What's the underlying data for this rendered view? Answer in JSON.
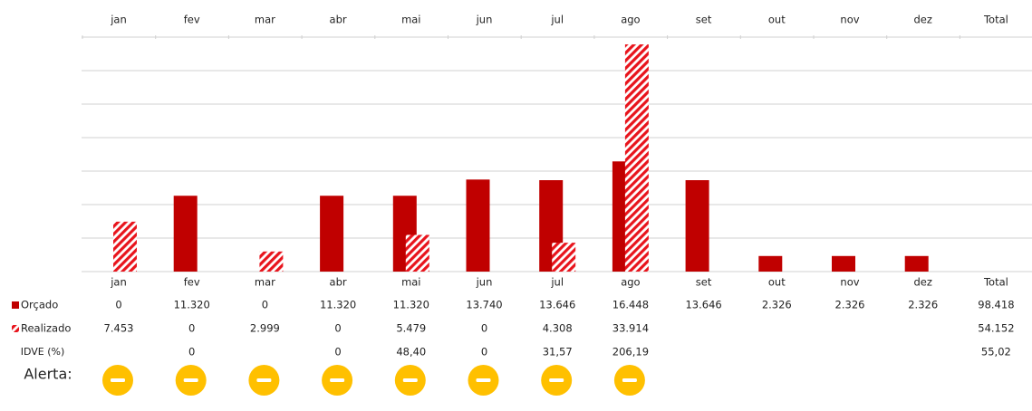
{
  "chart_data": {
    "type": "bar",
    "categories": [
      "jan",
      "fev",
      "mar",
      "abr",
      "mai",
      "jun",
      "jul",
      "ago",
      "set",
      "out",
      "nov",
      "dez"
    ],
    "total_label": "Total",
    "ylim": [
      0,
      35000
    ],
    "yticks": [
      0,
      5000,
      10000,
      15000,
      20000,
      25000,
      30000,
      35000
    ],
    "grid": true,
    "series": [
      {
        "name": "Orçado",
        "color": "#c00000",
        "pattern": "solid",
        "values": [
          0,
          11320,
          0,
          11320,
          11320,
          13740,
          13646,
          16448,
          13646,
          2326,
          2326,
          2326
        ],
        "value_labels": [
          "0",
          "11.320",
          "0",
          "11.320",
          "11.320",
          "13.740",
          "13.646",
          "16.448",
          "13.646",
          "2.326",
          "2.326",
          "2.326"
        ],
        "total": 98418,
        "total_label": "98.418"
      },
      {
        "name": "Realizado",
        "color": "#e8141c",
        "pattern": "hatch",
        "values": [
          7453,
          0,
          2999,
          0,
          5479,
          0,
          4308,
          33914,
          null,
          null,
          null,
          null
        ],
        "value_labels": [
          "7.453",
          "0",
          "2.999",
          "0",
          "5.479",
          "0",
          "4.308",
          "33.914",
          null,
          null,
          null,
          null
        ],
        "total": 54152,
        "total_label": "54.152"
      }
    ],
    "table_rows": [
      {
        "name": "IDVE (%)",
        "values": [
          null,
          0,
          null,
          0,
          48.4,
          0,
          31.57,
          206.19,
          null,
          null,
          null,
          null
        ],
        "value_labels": [
          null,
          "0",
          null,
          "0",
          "48,40",
          "0",
          "31,57",
          "206,19",
          null,
          null,
          null,
          null
        ],
        "total": 55.02,
        "total_label": "55,02"
      }
    ],
    "alert_label": "Alerta:"
  }
}
